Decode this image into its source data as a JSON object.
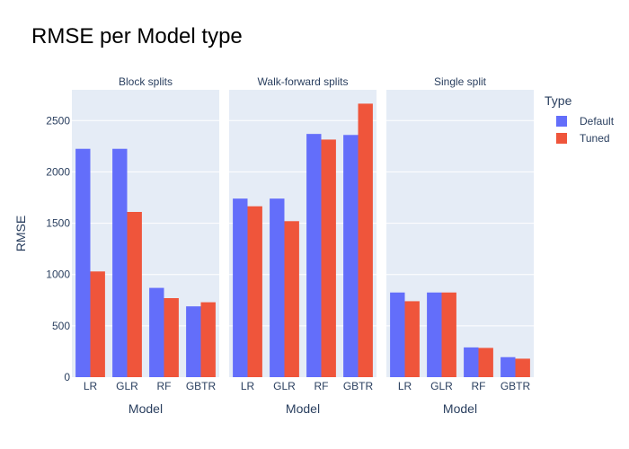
{
  "chart_data": {
    "type": "bar",
    "title": "RMSE per Model type",
    "ylabel": "RMSE",
    "ylim": [
      0,
      2800
    ],
    "yticks": [
      0,
      500,
      1000,
      1500,
      2000,
      2500
    ],
    "grid": true,
    "legend": {
      "title": "Type",
      "position": "top-right"
    },
    "colors": {
      "Default": "#636efa",
      "Tuned": "#ef553b"
    },
    "categories": [
      "LR",
      "GLR",
      "RF",
      "GBTR"
    ],
    "panels": [
      {
        "title": "Block splits",
        "xlabel": "Model",
        "series": [
          {
            "name": "Default",
            "values": [
              2225,
              2225,
              870,
              690
            ]
          },
          {
            "name": "Tuned",
            "values": [
              1030,
              1610,
              770,
              730
            ]
          }
        ]
      },
      {
        "title": "Walk-forward splits",
        "xlabel": "Model",
        "series": [
          {
            "name": "Default",
            "values": [
              1740,
              1740,
              2370,
              2360
            ]
          },
          {
            "name": "Tuned",
            "values": [
              1665,
              1520,
              2315,
              2665
            ]
          }
        ]
      },
      {
        "title": "Single split",
        "xlabel": "Model",
        "series": [
          {
            "name": "Default",
            "values": [
              825,
              825,
              290,
              195
            ]
          },
          {
            "name": "Tuned",
            "values": [
              740,
              825,
              285,
              180
            ]
          }
        ]
      }
    ]
  }
}
